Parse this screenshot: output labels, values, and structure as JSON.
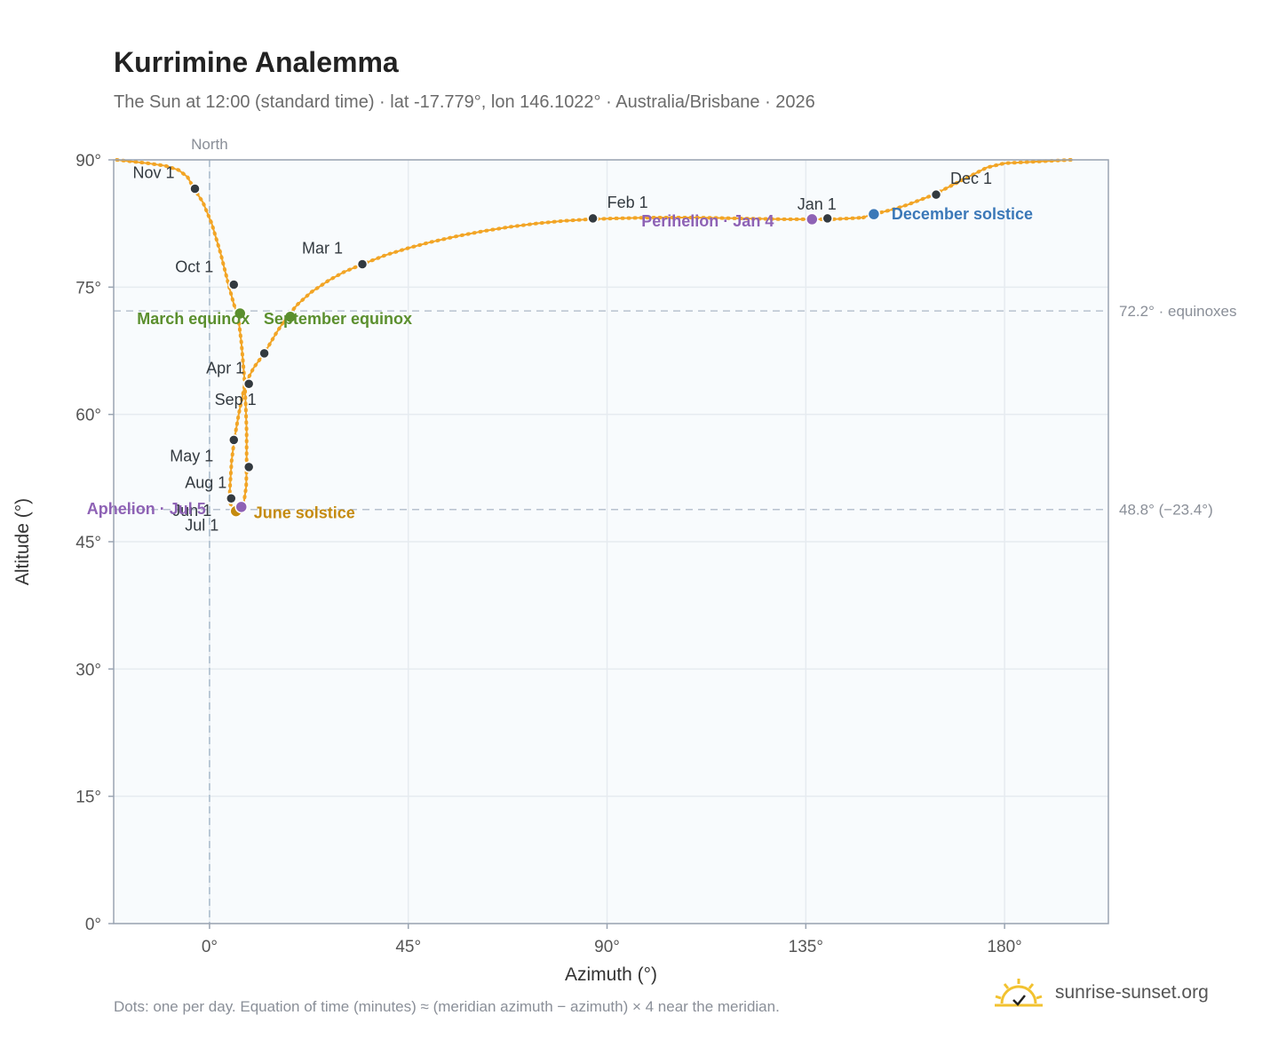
{
  "header": {
    "title": "Kurrimine Analemma",
    "subtitle": "The Sun at 12:00 (standard time) · lat -17.779°, lon 146.1022° · Australia/Brisbane · 2026"
  },
  "footer": {
    "note": "Dots: one per day. Equation of time (minutes) ≈ (meridian azimuth − azimuth) × 4 near the meridian.",
    "brand": "sunrise-sunset.org"
  },
  "colors": {
    "curve": "#f2a526",
    "month_marker": "#333a40",
    "equinox": "#5b8f2e",
    "june_solstice": "#c58b10",
    "december_solstice": "#3b78b8",
    "apsis": "#8e62b5",
    "grid": "#e6ebf0",
    "plot_bg": "#f8fbfd",
    "axis_frame": "#9aa4b2",
    "reference_line": "#b8c2cf",
    "brand_icon": "#f2c230"
  },
  "chart_data": {
    "type": "scatter",
    "xlabel": "Azimuth (°)",
    "ylabel": "Altitude (°)",
    "xlim": [
      -21.7,
      203.5
    ],
    "ylim": [
      0,
      90
    ],
    "x_ticks": [
      0,
      45,
      90,
      135,
      180
    ],
    "x_tick_labels": [
      "0°",
      "45°",
      "90°",
      "135°",
      "180°"
    ],
    "y_ticks": [
      0,
      15,
      30,
      45,
      60,
      75,
      90
    ],
    "y_tick_labels": [
      "0°",
      "15°",
      "30°",
      "45°",
      "60°",
      "75°",
      "90°"
    ],
    "grid": true,
    "north_marker": {
      "azimuth": 0,
      "label": "North"
    },
    "reference_lines": [
      {
        "altitude": 72.2,
        "label": "72.2° · equinoxes"
      },
      {
        "altitude": 48.8,
        "label": "48.8° (−23.4°)"
      }
    ],
    "daily_path": [
      [
        148,
        83.2
      ],
      [
        150,
        83.6
      ],
      [
        152,
        83.8
      ],
      [
        155,
        84.2
      ],
      [
        158,
        84.7
      ],
      [
        161,
        85.3
      ],
      [
        164,
        85.9
      ],
      [
        167,
        86.7
      ],
      [
        170,
        87.5
      ],
      [
        173,
        88.3
      ],
      [
        176,
        89.1
      ],
      [
        180,
        89.6
      ],
      [
        195,
        90
      ],
      [
        -21,
        90
      ],
      [
        -14,
        89.6
      ],
      [
        -10,
        89.3
      ],
      [
        -7,
        88.8
      ],
      [
        -5,
        88.0
      ],
      [
        -3.5,
        86.6
      ],
      [
        -1.5,
        85
      ],
      [
        0.5,
        82.5
      ],
      [
        2.5,
        79
      ],
      [
        4.3,
        75.3
      ],
      [
        5.5,
        73
      ],
      [
        6.5,
        71.5
      ],
      [
        7.2,
        68.5
      ],
      [
        7.7,
        65.5
      ],
      [
        8.0,
        63.5
      ],
      [
        8.2,
        61
      ],
      [
        8.4,
        58
      ],
      [
        8.4,
        54
      ],
      [
        8.3,
        51.5
      ],
      [
        7.8,
        49.7
      ],
      [
        7.0,
        49.0
      ],
      [
        6.3,
        48.8
      ],
      [
        5.4,
        48.9
      ],
      [
        4.8,
        49.4
      ],
      [
        4.5,
        50.0
      ],
      [
        4.7,
        52
      ],
      [
        5.0,
        54.5
      ],
      [
        5.6,
        57
      ],
      [
        6.6,
        60
      ],
      [
        8.0,
        63.5
      ],
      [
        10,
        65.5
      ],
      [
        12.4,
        67.2
      ],
      [
        15,
        69.5
      ],
      [
        17.5,
        71.5
      ],
      [
        20,
        73
      ],
      [
        23,
        74.4
      ],
      [
        27,
        75.8
      ],
      [
        30.5,
        76.8
      ],
      [
        34.6,
        77.7
      ],
      [
        40,
        78.8
      ],
      [
        45,
        79.6
      ],
      [
        50,
        80.3
      ],
      [
        56,
        81
      ],
      [
        62,
        81.6
      ],
      [
        68,
        82.1
      ],
      [
        74,
        82.5
      ],
      [
        80,
        82.8
      ],
      [
        86,
        83.0
      ],
      [
        92,
        83.1
      ],
      [
        100,
        83.2
      ],
      [
        110,
        83.2
      ],
      [
        120,
        83.1
      ],
      [
        130,
        83.0
      ],
      [
        137,
        83.0
      ],
      [
        141,
        83.0
      ],
      [
        145,
        83.1
      ],
      [
        148,
        83.2
      ]
    ],
    "month_markers": [
      {
        "label": "Jan 1",
        "azimuth": 139.9,
        "altitude": 83.1
      },
      {
        "label": "Feb 1",
        "azimuth": 86.8,
        "altitude": 83.1
      },
      {
        "label": "Mar 1",
        "azimuth": 34.6,
        "altitude": 77.7
      },
      {
        "label": "Apr 1",
        "azimuth": 8.9,
        "altitude": 63.6
      },
      {
        "label": "May 1",
        "azimuth": 5.5,
        "altitude": 57.0
      },
      {
        "label": "Jun 1",
        "azimuth": 8.9,
        "altitude": 53.8
      },
      {
        "label": "Jul 1",
        "azimuth": 4.9,
        "altitude": 50.1
      },
      {
        "label": "Aug 1",
        "azimuth": 4.9,
        "altitude": 50.1
      },
      {
        "label": "Sep 1",
        "azimuth": 12.4,
        "altitude": 67.2
      },
      {
        "label": "Oct 1",
        "azimuth": 5.5,
        "altitude": 75.3
      },
      {
        "label": "Nov 1",
        "azimuth": -3.3,
        "altitude": 86.6
      },
      {
        "label": "Dec 1",
        "azimuth": 164.5,
        "altitude": 85.9
      }
    ],
    "special_points": [
      {
        "label": "March equinox",
        "azimuth": 6.9,
        "altitude": 71.9,
        "kind": "equinox"
      },
      {
        "label": "September equinox",
        "azimuth": 18.3,
        "altitude": 71.5,
        "kind": "equinox"
      },
      {
        "label": "June solstice",
        "azimuth": 6.0,
        "altitude": 48.6,
        "kind": "june_solstice"
      },
      {
        "label": "December solstice",
        "azimuth": 150.4,
        "altitude": 83.6,
        "kind": "december_solstice"
      },
      {
        "label": "Perihelion · Jan 4",
        "azimuth": 136.4,
        "altitude": 83.0,
        "kind": "apsis"
      },
      {
        "label": "Aphelion · Jul 5",
        "azimuth": 7.2,
        "altitude": 49.1,
        "kind": "apsis"
      }
    ]
  }
}
